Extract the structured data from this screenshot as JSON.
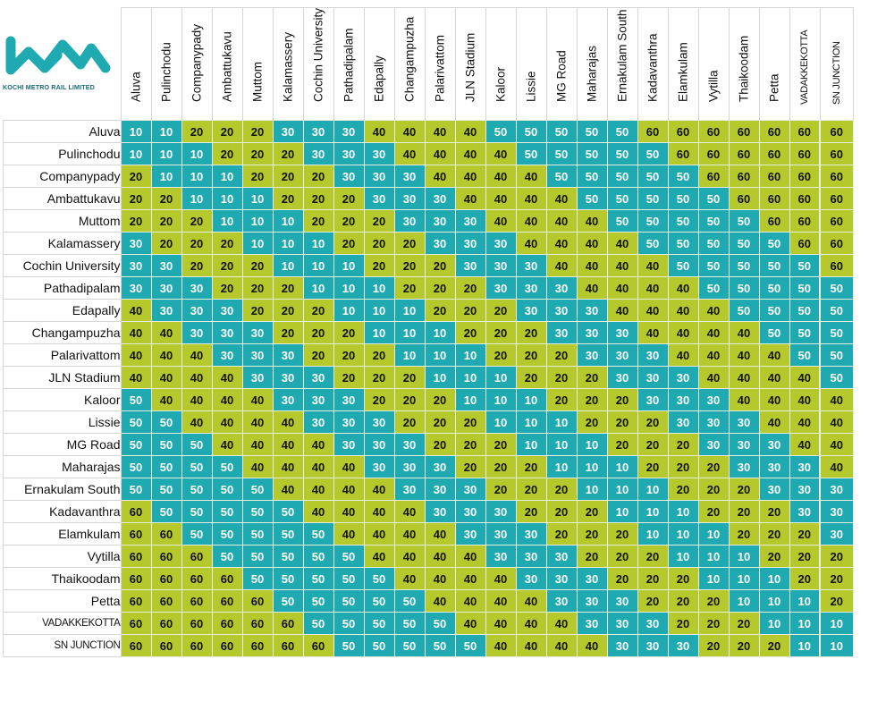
{
  "brand": {
    "logo_name": "kmrl-logo-icon",
    "name": "KOCHI METRO RAIL LIMITED",
    "logo_color": "#1fa9b1"
  },
  "colors": {
    "teal": "#1fa9b1",
    "lime": "#b5c92c",
    "teal_text": "#ffffff",
    "lime_text": "#111111"
  },
  "legend_rule": "Fares 10/30/50 shown teal; 20/40/60 shown lime",
  "stations": [
    "Aluva",
    "Pulinchodu",
    "Companypady",
    "Ambattukavu",
    "Muttom",
    "Kalamassery",
    "Cochin University",
    "Pathadipalam",
    "Edapally",
    "Changampuzha",
    "Palarivattom",
    "JLN Stadium",
    "Kaloor",
    "Lissie",
    "MG Road",
    "Maharajas",
    "Ernakulam South",
    "Kadavanthra",
    "Elamkulam",
    "Vytilla",
    "Thaikoodam",
    "Petta",
    "VADAKKEKOTTA",
    "SN JUNCTION"
  ],
  "fare_matrix": [
    [
      10,
      10,
      20,
      20,
      20,
      30,
      30,
      30,
      40,
      40,
      40,
      40,
      50,
      50,
      50,
      50,
      50,
      60,
      60,
      60,
      60,
      60,
      60,
      60
    ],
    [
      10,
      10,
      10,
      20,
      20,
      20,
      30,
      30,
      30,
      40,
      40,
      40,
      40,
      50,
      50,
      50,
      50,
      50,
      60,
      60,
      60,
      60,
      60,
      60
    ],
    [
      20,
      10,
      10,
      10,
      20,
      20,
      20,
      30,
      30,
      30,
      40,
      40,
      40,
      40,
      50,
      50,
      50,
      50,
      50,
      60,
      60,
      60,
      60,
      60
    ],
    [
      20,
      20,
      10,
      10,
      10,
      20,
      20,
      20,
      30,
      30,
      30,
      40,
      40,
      40,
      40,
      50,
      50,
      50,
      50,
      50,
      60,
      60,
      60,
      60
    ],
    [
      20,
      20,
      20,
      10,
      10,
      10,
      20,
      20,
      20,
      30,
      30,
      30,
      40,
      40,
      40,
      40,
      50,
      50,
      50,
      50,
      50,
      60,
      60,
      60
    ],
    [
      30,
      20,
      20,
      20,
      10,
      10,
      10,
      20,
      20,
      20,
      30,
      30,
      30,
      40,
      40,
      40,
      40,
      50,
      50,
      50,
      50,
      50,
      60,
      60
    ],
    [
      30,
      30,
      20,
      20,
      20,
      10,
      10,
      10,
      20,
      20,
      20,
      30,
      30,
      30,
      40,
      40,
      40,
      40,
      50,
      50,
      50,
      50,
      50,
      60
    ],
    [
      30,
      30,
      30,
      20,
      20,
      20,
      10,
      10,
      10,
      20,
      20,
      20,
      30,
      30,
      30,
      40,
      40,
      40,
      40,
      50,
      50,
      50,
      50,
      50
    ],
    [
      40,
      30,
      30,
      30,
      20,
      20,
      20,
      10,
      10,
      10,
      20,
      20,
      20,
      30,
      30,
      30,
      40,
      40,
      40,
      40,
      50,
      50,
      50,
      50
    ],
    [
      40,
      40,
      30,
      30,
      30,
      20,
      20,
      20,
      10,
      10,
      10,
      20,
      20,
      20,
      30,
      30,
      30,
      40,
      40,
      40,
      40,
      50,
      50,
      50
    ],
    [
      40,
      40,
      40,
      30,
      30,
      30,
      20,
      20,
      20,
      10,
      10,
      10,
      20,
      20,
      20,
      30,
      30,
      30,
      40,
      40,
      40,
      40,
      50,
      50
    ],
    [
      40,
      40,
      40,
      40,
      30,
      30,
      30,
      20,
      20,
      20,
      10,
      10,
      10,
      20,
      20,
      20,
      30,
      30,
      30,
      40,
      40,
      40,
      40,
      50
    ],
    [
      50,
      40,
      40,
      40,
      40,
      30,
      30,
      30,
      20,
      20,
      20,
      10,
      10,
      10,
      20,
      20,
      20,
      30,
      30,
      30,
      40,
      40,
      40,
      40
    ],
    [
      50,
      50,
      40,
      40,
      40,
      40,
      30,
      30,
      30,
      20,
      20,
      20,
      10,
      10,
      10,
      20,
      20,
      20,
      30,
      30,
      30,
      40,
      40,
      40
    ],
    [
      50,
      50,
      50,
      40,
      40,
      40,
      40,
      30,
      30,
      30,
      20,
      20,
      20,
      10,
      10,
      10,
      20,
      20,
      20,
      30,
      30,
      30,
      40,
      40
    ],
    [
      50,
      50,
      50,
      50,
      40,
      40,
      40,
      40,
      30,
      30,
      30,
      20,
      20,
      20,
      10,
      10,
      10,
      20,
      20,
      20,
      30,
      30,
      30,
      40
    ],
    [
      50,
      50,
      50,
      50,
      50,
      40,
      40,
      40,
      40,
      30,
      30,
      30,
      20,
      20,
      20,
      10,
      10,
      10,
      20,
      20,
      20,
      30,
      30,
      30
    ],
    [
      60,
      50,
      50,
      50,
      50,
      50,
      40,
      40,
      40,
      40,
      30,
      30,
      30,
      20,
      20,
      20,
      10,
      10,
      10,
      20,
      20,
      20,
      30,
      30
    ],
    [
      60,
      60,
      50,
      50,
      50,
      50,
      50,
      40,
      40,
      40,
      40,
      30,
      30,
      30,
      20,
      20,
      20,
      10,
      10,
      10,
      20,
      20,
      20,
      30
    ],
    [
      60,
      60,
      60,
      50,
      50,
      50,
      50,
      50,
      40,
      40,
      40,
      40,
      30,
      30,
      30,
      20,
      20,
      20,
      10,
      10,
      10,
      20,
      20,
      20
    ],
    [
      60,
      60,
      60,
      60,
      50,
      50,
      50,
      50,
      50,
      40,
      40,
      40,
      40,
      30,
      30,
      30,
      20,
      20,
      20,
      10,
      10,
      10,
      20,
      20
    ],
    [
      60,
      60,
      60,
      60,
      60,
      50,
      50,
      50,
      50,
      50,
      40,
      40,
      40,
      40,
      30,
      30,
      30,
      20,
      20,
      20,
      10,
      10,
      10,
      20
    ],
    [
      60,
      60,
      60,
      60,
      60,
      60,
      50,
      50,
      50,
      50,
      50,
      40,
      40,
      40,
      40,
      30,
      30,
      30,
      20,
      20,
      20,
      10,
      10,
      10
    ],
    [
      60,
      60,
      60,
      60,
      60,
      60,
      60,
      50,
      50,
      50,
      50,
      50,
      40,
      40,
      40,
      40,
      30,
      30,
      30,
      20,
      20,
      20,
      10,
      10
    ]
  ]
}
